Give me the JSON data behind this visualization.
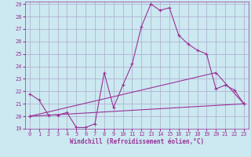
{
  "xlabel": "Windchill (Refroidissement éolien,°C)",
  "bg_color": "#cce8f0",
  "grid_color": "#aaaacc",
  "line_color": "#993399",
  "xlim": [
    -0.5,
    23.5
  ],
  "ylim": [
    19,
    29.2
  ],
  "yticks": [
    19,
    20,
    21,
    22,
    23,
    24,
    25,
    26,
    27,
    28,
    29
  ],
  "xticks": [
    0,
    1,
    2,
    3,
    4,
    5,
    6,
    7,
    8,
    9,
    10,
    11,
    12,
    13,
    14,
    15,
    16,
    17,
    18,
    19,
    20,
    21,
    22,
    23
  ],
  "line1_x": [
    0,
    1,
    2,
    3,
    4,
    5,
    6,
    7,
    8,
    9,
    10,
    11,
    12,
    13,
    14,
    15,
    16,
    17,
    18,
    19,
    20,
    21,
    22,
    23
  ],
  "line1_y": [
    21.8,
    21.3,
    20.1,
    20.1,
    20.3,
    19.1,
    19.1,
    19.4,
    23.5,
    20.7,
    22.5,
    24.2,
    27.2,
    29.0,
    28.5,
    28.7,
    26.5,
    25.8,
    25.3,
    25.0,
    22.2,
    22.5,
    22.1,
    21.0
  ],
  "line2_x": [
    0,
    23
  ],
  "line2_y": [
    20.0,
    21.0
  ],
  "line3_x": [
    0,
    20,
    23
  ],
  "line3_y": [
    20.0,
    23.5,
    21.0
  ]
}
